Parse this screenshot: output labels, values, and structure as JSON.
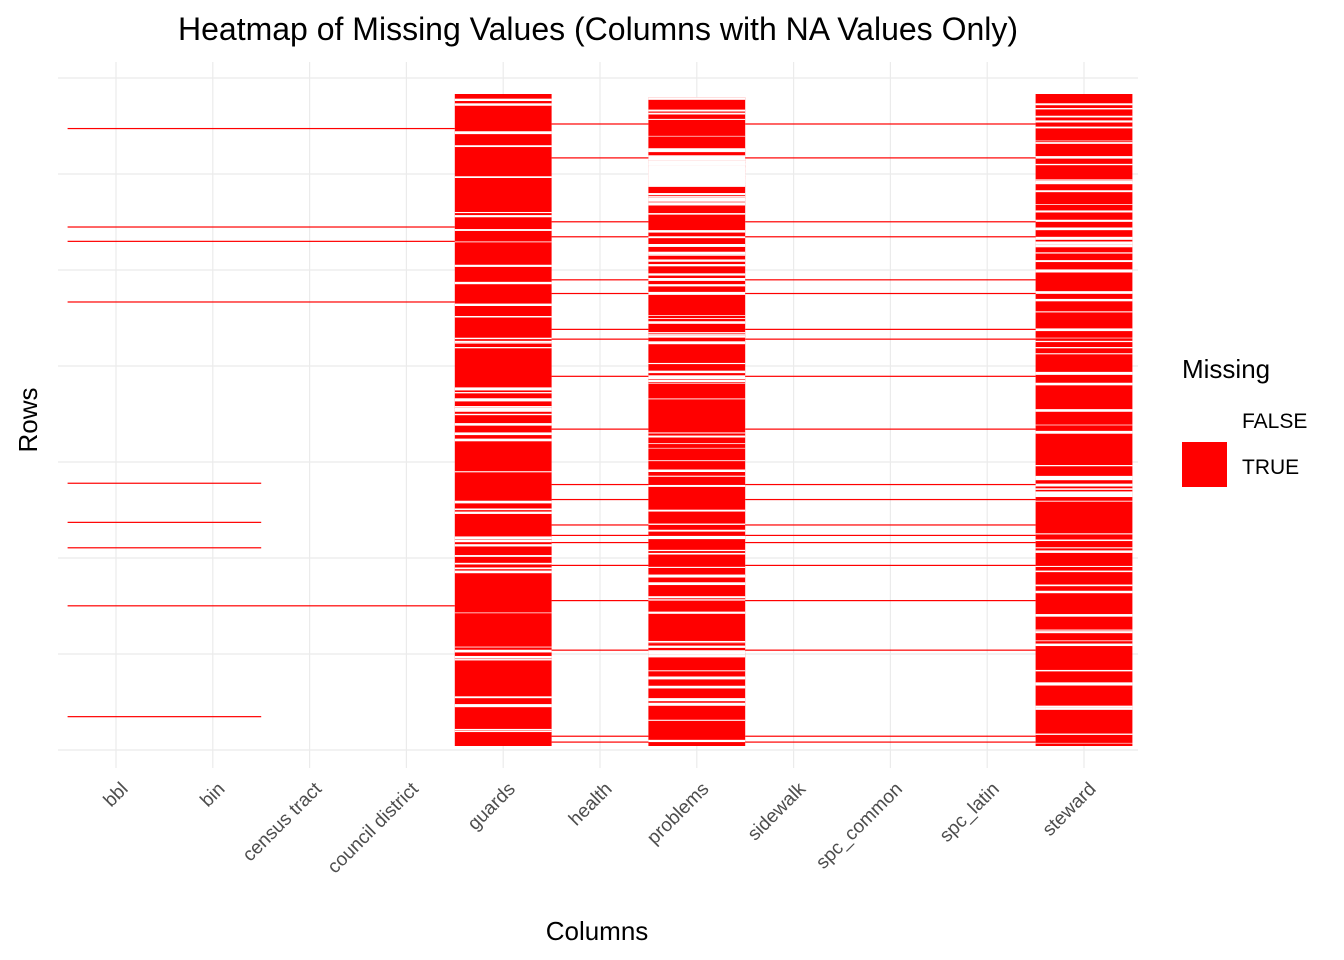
{
  "chart_data": {
    "type": "heatmap",
    "title": "Heatmap of Missing Values (Columns with NA Values Only)",
    "xlabel": "Columns",
    "ylabel": "Rows",
    "columns": [
      "bbl",
      "bin",
      "census tract",
      "council district",
      "guards",
      "health",
      "problems",
      "sidewalk",
      "spc_common",
      "spc_latin",
      "steward"
    ],
    "row_range": [
      0,
      1
    ],
    "grid": true,
    "legend": {
      "title": "Missing",
      "position": "right",
      "entries": [
        {
          "label": "FALSE",
          "color": "#ffffff"
        },
        {
          "label": "TRUE",
          "color": "#ff0000"
        }
      ]
    },
    "missing_color": "#ff0000",
    "present_color": "#ffffff",
    "missing_segments": [
      {
        "from_col": 0,
        "to_col": 3,
        "rows": [
          0.053,
          0.204,
          0.226,
          0.319,
          0.785
        ]
      },
      {
        "from_col": 0,
        "to_col": 1,
        "rows": [
          0.597,
          0.657,
          0.696,
          0.955
        ]
      },
      {
        "from_col": 5,
        "to_col": 5,
        "rows": [
          0.046,
          0.098,
          0.196,
          0.219,
          0.285,
          0.306,
          0.361,
          0.376,
          0.433,
          0.514,
          0.599,
          0.622,
          0.661,
          0.677,
          0.688,
          0.723,
          0.777,
          0.853,
          0.985,
          0.994
        ]
      },
      {
        "from_col": 7,
        "to_col": 9,
        "rows": [
          0.046,
          0.098,
          0.196,
          0.219,
          0.285,
          0.306,
          0.361,
          0.376,
          0.433,
          0.514,
          0.599,
          0.622,
          0.661,
          0.677,
          0.688,
          0.723,
          0.777,
          0.853,
          0.985,
          0.994
        ]
      }
    ],
    "dense_columns": {
      "guards": {
        "col": 4,
        "start": 0.0,
        "missing_share": 0.88
      },
      "problems": {
        "col": 6,
        "start": 0.005,
        "missing_share": 0.8,
        "gaps": [
          [
            0.094,
            0.138
          ]
        ]
      },
      "steward": {
        "col": 10,
        "start": 0.0,
        "missing_share": 0.85
      }
    }
  }
}
